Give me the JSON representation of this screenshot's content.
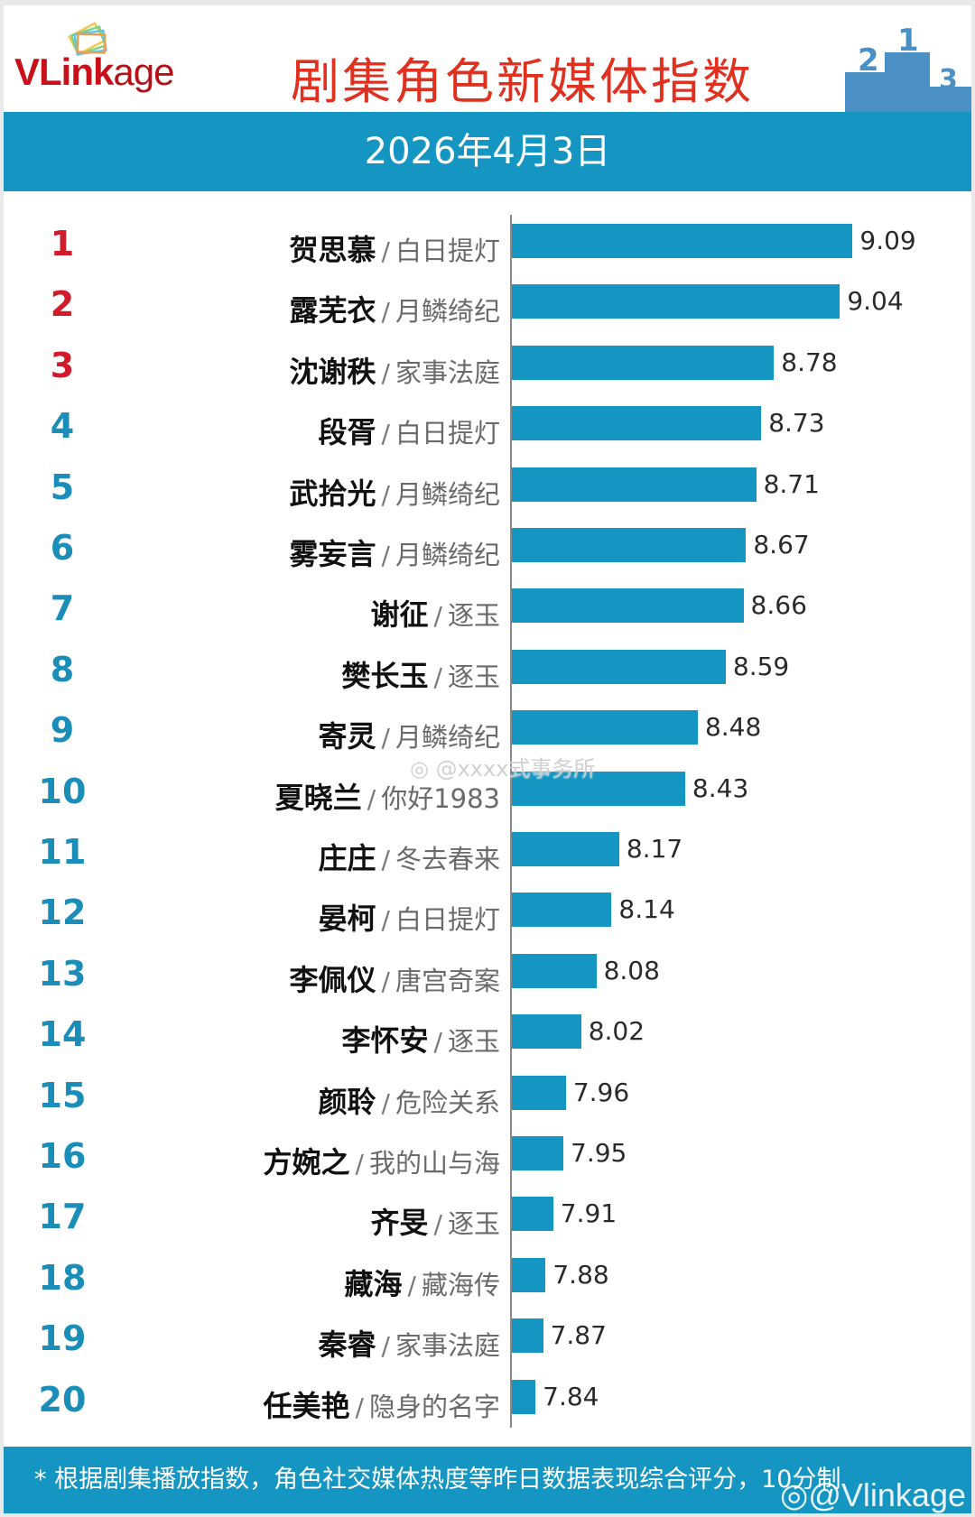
{
  "header": {
    "logo_main": "VLink",
    "logo_suffix": "age",
    "title": "剧集角色新媒体指数",
    "podium_icon": "podium-123-icon"
  },
  "date_bar": {
    "date": "2026年4月3日"
  },
  "watermark": {
    "text": "@xxxx式事务所",
    "icon": "weibo-icon"
  },
  "footer": {
    "note": "* 根据剧集播放指数，角色社交媒体热度等昨日数据表现综合评分，10分制",
    "watermark": "@Vlinkage"
  },
  "colors": {
    "bar": "#1596c2",
    "top3_rank": "#d11a2a",
    "rank": "#1a8db8",
    "title": "#e03020",
    "logo": "#c8101a"
  },
  "rows": [
    {
      "rank": "1",
      "name": "贺思慕",
      "sep": "/",
      "show": "白日提灯",
      "value": "9.09"
    },
    {
      "rank": "2",
      "name": "露芜衣",
      "sep": "/",
      "show": "月鳞绮纪",
      "value": "9.04"
    },
    {
      "rank": "3",
      "name": "沈谢秩",
      "sep": "/",
      "show": "家事法庭",
      "value": "8.78"
    },
    {
      "rank": "4",
      "name": "段胥",
      "sep": "/",
      "show": "白日提灯",
      "value": "8.73"
    },
    {
      "rank": "5",
      "name": "武拾光",
      "sep": "/",
      "show": "月鳞绮纪",
      "value": "8.71"
    },
    {
      "rank": "6",
      "name": "雾妄言",
      "sep": "/",
      "show": "月鳞绮纪",
      "value": "8.67"
    },
    {
      "rank": "7",
      "name": "谢征",
      "sep": "/",
      "show": "逐玉",
      "value": "8.66"
    },
    {
      "rank": "8",
      "name": "樊长玉",
      "sep": "/",
      "show": "逐玉",
      "value": "8.59"
    },
    {
      "rank": "9",
      "name": "寄灵",
      "sep": "/",
      "show": "月鳞绮纪",
      "value": "8.48"
    },
    {
      "rank": "10",
      "name": "夏晓兰",
      "sep": "/",
      "show": "你好1983",
      "value": "8.43"
    },
    {
      "rank": "11",
      "name": "庄庄",
      "sep": "/",
      "show": "冬去春来",
      "value": "8.17"
    },
    {
      "rank": "12",
      "name": "晏柯",
      "sep": "/",
      "show": "白日提灯",
      "value": "8.14"
    },
    {
      "rank": "13",
      "name": "李佩仪",
      "sep": "/",
      "show": "唐宫奇案",
      "value": "8.08"
    },
    {
      "rank": "14",
      "name": "李怀安",
      "sep": "/",
      "show": "逐玉",
      "value": "8.02"
    },
    {
      "rank": "15",
      "name": "颜聆",
      "sep": "/",
      "show": "危险关系",
      "value": "7.96"
    },
    {
      "rank": "16",
      "name": "方婉之",
      "sep": "/",
      "show": "我的山与海",
      "value": "7.95"
    },
    {
      "rank": "17",
      "name": "齐旻",
      "sep": "/",
      "show": "逐玉",
      "value": "7.91"
    },
    {
      "rank": "18",
      "name": "藏海",
      "sep": "/",
      "show": "藏海传",
      "value": "7.88"
    },
    {
      "rank": "19",
      "name": "秦睿",
      "sep": "/",
      "show": "家事法庭",
      "value": "7.87"
    },
    {
      "rank": "20",
      "name": "任美艳",
      "sep": "/",
      "show": "隐身的名字",
      "value": "7.84"
    }
  ],
  "chart_data": {
    "type": "bar",
    "orientation": "horizontal",
    "title": "剧集角色新媒体指数",
    "subtitle": "2026年4月3日",
    "xlabel": "",
    "ylabel": "",
    "grid": false,
    "legend": null,
    "categories": [
      "贺思慕 / 白日提灯",
      "露芜衣 / 月鳞绮纪",
      "沈谢秩 / 家事法庭",
      "段胥 / 白日提灯",
      "武拾光 / 月鳞绮纪",
      "雾妄言 / 月鳞绮纪",
      "谢征 / 逐玉",
      "樊长玉 / 逐玉",
      "寄灵 / 月鳞绮纪",
      "夏晓兰 / 你好1983",
      "庄庄 / 冬去春来",
      "晏柯 / 白日提灯",
      "李佩仪 / 唐宫奇案",
      "李怀安 / 逐玉",
      "颜聆 / 危险关系",
      "方婉之 / 我的山与海",
      "齐旻 / 逐玉",
      "藏海 / 藏海传",
      "秦睿 / 家事法庭",
      "任美艳 / 隐身的名字"
    ],
    "values": [
      9.09,
      9.04,
      8.78,
      8.73,
      8.71,
      8.67,
      8.66,
      8.59,
      8.48,
      8.43,
      8.17,
      8.14,
      8.08,
      8.02,
      7.96,
      7.95,
      7.91,
      7.88,
      7.87,
      7.84
    ],
    "data_labels": true,
    "annotation": "* 根据剧集播放指数，角色社交媒体热度等昨日数据表现综合评分，10分制"
  }
}
